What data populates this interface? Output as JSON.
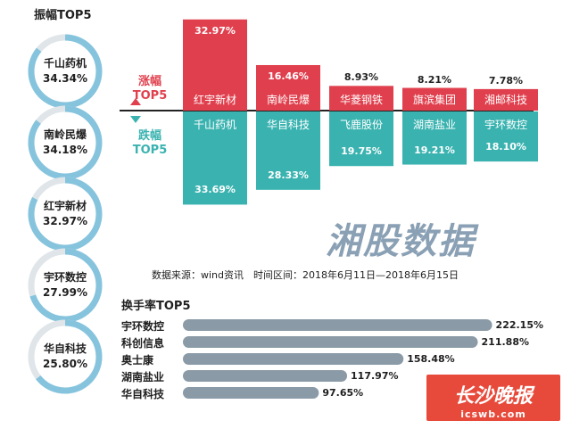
{
  "amplitude_header": "振幅TOP5",
  "turnover_header": "换手率TOP5",
  "legend": {
    "up_label": "涨幅",
    "up_top": "TOP5",
    "down_label": "跌幅",
    "down_top": "TOP5"
  },
  "source_text": "数据来源：wind资讯　时间区间：2018年6月11日—2018年6月15日",
  "title_deco": "湘股数据",
  "logo": {
    "name": "长沙晚报",
    "url": "icswb.com"
  },
  "colors": {
    "gain": "#e0404e",
    "loss": "#3ab3b0",
    "ring": "#86c4de",
    "hbar": "#8a9aa6"
  },
  "chart_data": [
    {
      "type": "donut",
      "title": "振幅TOP5",
      "categories": [
        "千山药机",
        "南岭民爆",
        "红宇新材",
        "宇环数控",
        "华自科技"
      ],
      "labels": [
        "34.34%",
        "34.18%",
        "32.97%",
        "27.99%",
        "25.80%"
      ],
      "values": [
        34.34,
        34.18,
        32.97,
        27.99,
        25.8
      ]
    },
    {
      "type": "bar",
      "title": "涨幅 TOP5",
      "categories": [
        "红宇新材",
        "南岭民爆",
        "华菱钢铁",
        "旗滨集团",
        "湘邮科技"
      ],
      "labels": [
        "32.97%",
        "16.46%",
        "8.93%",
        "8.21%",
        "7.78%"
      ],
      "values": [
        32.97,
        16.46,
        8.93,
        8.21,
        7.78
      ]
    },
    {
      "type": "bar",
      "title": "跌幅 TOP5",
      "categories": [
        "千山药机",
        "华自科技",
        "飞鹿股份",
        "湖南盐业",
        "宇环数控"
      ],
      "labels": [
        "33.69%",
        "28.33%",
        "19.75%",
        "19.21%",
        "18.10%"
      ],
      "values": [
        33.69,
        28.33,
        19.75,
        19.21,
        18.1
      ]
    },
    {
      "type": "bar",
      "orientation": "horizontal",
      "title": "换手率TOP5",
      "categories": [
        "宇环数控",
        "科创信息",
        "奥士康",
        "湖南盐业",
        "华自科技"
      ],
      "labels": [
        "222.15%",
        "211.88%",
        "158.48%",
        "117.97%",
        "97.65%"
      ],
      "values": [
        222.15,
        211.88,
        158.48,
        117.97,
        97.65
      ]
    }
  ]
}
